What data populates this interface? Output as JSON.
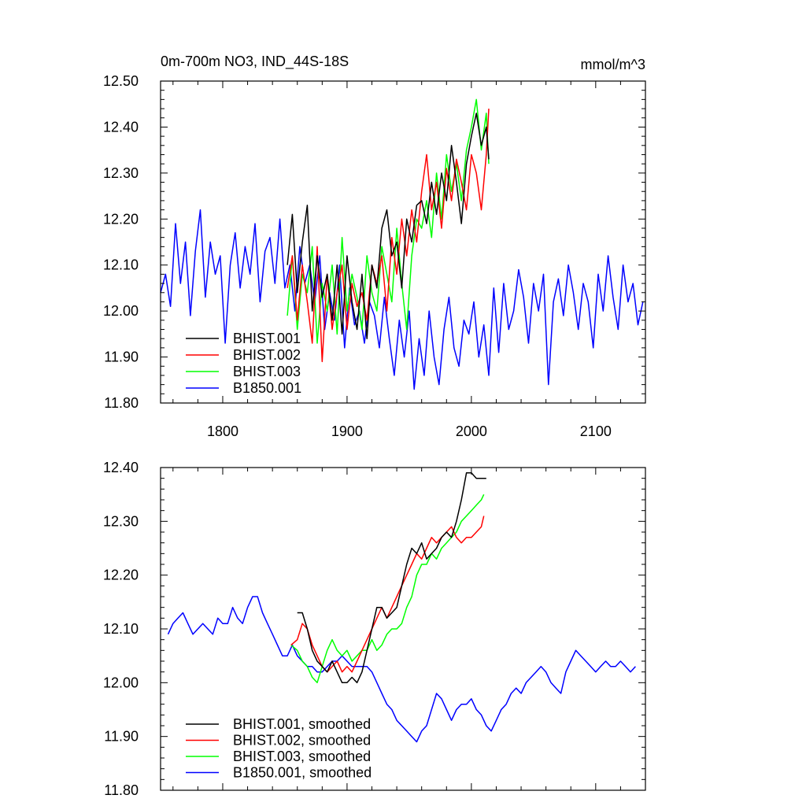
{
  "figure": {
    "title": "0m-700m NO3, IND_44S-18S",
    "units": "mmol/m^3"
  },
  "colors": {
    "black": "#000000",
    "red": "#ff0000",
    "green": "#00ff00",
    "blue": "#0000ff"
  },
  "chart_data": [
    {
      "type": "line",
      "title": "0m-700m NO3, IND_44S-18S",
      "units_label": "mmol/m^3",
      "xlim": [
        1750,
        2140
      ],
      "ylim": [
        11.8,
        12.5
      ],
      "xticks": [
        1800,
        1900,
        2000,
        2100
      ],
      "yticks": [
        11.8,
        11.9,
        12.0,
        12.1,
        12.2,
        12.3,
        12.4,
        12.5
      ],
      "ytick_labels": [
        "11.80",
        "11.90",
        "12.00",
        "12.10",
        "12.20",
        "12.30",
        "12.40",
        "12.50"
      ],
      "xtick_labels": [
        "1800",
        "1900",
        "2000",
        "2100"
      ],
      "legend_position": "bottom-left",
      "grid": false,
      "series": [
        {
          "name": "BHIST.001",
          "color": "#000000",
          "x": [
            1852,
            1856,
            1860,
            1864,
            1868,
            1872,
            1876,
            1880,
            1884,
            1888,
            1892,
            1896,
            1900,
            1904,
            1908,
            1912,
            1916,
            1920,
            1924,
            1928,
            1932,
            1936,
            1940,
            1944,
            1948,
            1952,
            1956,
            1960,
            1964,
            1968,
            1972,
            1976,
            1980,
            1984,
            1988,
            1992,
            1996,
            2000,
            2004,
            2008,
            2012,
            2014
          ],
          "values": [
            12.1,
            12.21,
            12.04,
            12.15,
            12.23,
            12.0,
            12.12,
            12.03,
            12.08,
            11.98,
            12.1,
            11.95,
            12.12,
            12.02,
            11.96,
            12.08,
            11.94,
            12.1,
            12.05,
            12.18,
            12.22,
            12.12,
            12.15,
            12.05,
            12.2,
            12.15,
            12.23,
            12.24,
            12.19,
            12.28,
            12.21,
            12.3,
            12.24,
            12.36,
            12.28,
            12.19,
            12.32,
            12.38,
            12.43,
            12.36,
            12.4,
            12.33
          ]
        },
        {
          "name": "BHIST.002",
          "color": "#ff0000",
          "x": [
            1852,
            1856,
            1860,
            1864,
            1868,
            1872,
            1876,
            1880,
            1884,
            1888,
            1892,
            1896,
            1900,
            1904,
            1908,
            1912,
            1916,
            1920,
            1924,
            1928,
            1932,
            1936,
            1940,
            1944,
            1948,
            1952,
            1956,
            1960,
            1964,
            1968,
            1972,
            1976,
            1980,
            1984,
            1988,
            1992,
            1996,
            2000,
            2004,
            2008,
            2012,
            2014
          ],
          "values": [
            12.05,
            12.12,
            11.98,
            12.1,
            12.02,
            11.93,
            12.14,
            11.89,
            12.08,
            11.96,
            12.04,
            12.1,
            11.96,
            12.06,
            12.01,
            12.04,
            11.98,
            12.1,
            12.06,
            12.12,
            12.0,
            12.16,
            12.08,
            12.2,
            12.12,
            12.22,
            12.15,
            12.26,
            12.34,
            12.22,
            12.28,
            12.18,
            12.31,
            12.24,
            12.33,
            12.28,
            12.22,
            12.34,
            12.3,
            12.22,
            12.34,
            12.44
          ]
        },
        {
          "name": "BHIST.003",
          "color": "#00ff00",
          "x": [
            1852,
            1856,
            1860,
            1864,
            1868,
            1872,
            1876,
            1880,
            1884,
            1888,
            1892,
            1896,
            1900,
            1904,
            1908,
            1912,
            1916,
            1920,
            1924,
            1928,
            1932,
            1936,
            1940,
            1944,
            1948,
            1952,
            1956,
            1960,
            1964,
            1968,
            1972,
            1976,
            1980,
            1984,
            1988,
            1992,
            1996,
            2000,
            2004,
            2008,
            2012,
            2014
          ],
          "values": [
            11.99,
            12.12,
            11.96,
            12.08,
            12.04,
            12.14,
            11.93,
            12.06,
            12.0,
            12.1,
            11.95,
            12.16,
            12.0,
            12.08,
            12.03,
            11.96,
            12.12,
            12.04,
            12.0,
            12.14,
            12.08,
            12.02,
            12.18,
            12.06,
            11.96,
            12.12,
            12.2,
            12.18,
            12.24,
            12.16,
            12.3,
            12.2,
            12.34,
            12.26,
            12.32,
            12.24,
            12.35,
            12.4,
            12.46,
            12.35,
            12.43,
            12.32
          ]
        },
        {
          "name": "B1850.001",
          "color": "#0000ff",
          "x": [
            1750,
            1754,
            1758,
            1762,
            1766,
            1770,
            1774,
            1778,
            1782,
            1786,
            1790,
            1794,
            1798,
            1802,
            1806,
            1810,
            1814,
            1818,
            1822,
            1826,
            1830,
            1834,
            1838,
            1842,
            1846,
            1850,
            1854,
            1858,
            1862,
            1866,
            1870,
            1874,
            1878,
            1882,
            1886,
            1890,
            1894,
            1898,
            1902,
            1906,
            1910,
            1914,
            1918,
            1922,
            1926,
            1930,
            1934,
            1938,
            1942,
            1946,
            1950,
            1954,
            1958,
            1962,
            1966,
            1970,
            1974,
            1978,
            1982,
            1986,
            1990,
            1994,
            1998,
            2002,
            2006,
            2010,
            2014,
            2018,
            2022,
            2026,
            2030,
            2034,
            2038,
            2042,
            2046,
            2050,
            2054,
            2058,
            2062,
            2066,
            2070,
            2074,
            2078,
            2082,
            2086,
            2090,
            2094,
            2098,
            2102,
            2106,
            2110,
            2114,
            2118,
            2122,
            2126,
            2130,
            2134,
            2138
          ],
          "values": [
            12.04,
            12.08,
            12.01,
            12.19,
            12.06,
            12.15,
            11.99,
            12.13,
            12.22,
            12.03,
            12.15,
            12.08,
            12.12,
            11.93,
            12.1,
            12.17,
            12.05,
            12.14,
            12.08,
            12.19,
            12.02,
            12.13,
            12.16,
            12.06,
            12.2,
            12.05,
            12.1,
            12.0,
            12.14,
            12.06,
            12.1,
            12.02,
            12.12,
            11.96,
            12.04,
            11.98,
            12.1,
            11.92,
            12.05,
            11.97,
            12.0,
            11.93,
            12.02,
            11.99,
            11.92,
            12.03,
            11.94,
            11.86,
            11.98,
            11.9,
            12.0,
            11.83,
            11.94,
            11.86,
            12.0,
            11.9,
            11.84,
            11.96,
            12.03,
            11.92,
            11.88,
            11.98,
            11.95,
            12.02,
            11.9,
            11.97,
            11.86,
            12.05,
            11.91,
            12.06,
            11.96,
            12.0,
            12.09,
            12.03,
            11.93,
            12.06,
            12.0,
            12.08,
            11.84,
            12.02,
            12.07,
            11.99,
            12.1,
            12.04,
            11.96,
            12.06,
            12.02,
            11.92,
            12.08,
            12.0,
            12.12,
            12.03,
            11.96,
            12.1,
            12.02,
            12.06,
            11.97,
            12.02
          ]
        }
      ]
    },
    {
      "type": "line",
      "xlim": [
        1750,
        2140
      ],
      "ylim": [
        11.8,
        12.4
      ],
      "xticks": [
        1800,
        1900,
        2000,
        2100
      ],
      "yticks": [
        11.8,
        11.9,
        12.0,
        12.1,
        12.2,
        12.3,
        12.4
      ],
      "ytick_labels": [
        "11.80",
        "11.90",
        "12.00",
        "12.10",
        "12.20",
        "12.30",
        "12.40"
      ],
      "legend_position": "bottom-left",
      "grid": false,
      "series": [
        {
          "name": "BHIST.001, smoothed",
          "color": "#000000",
          "x": [
            1860,
            1864,
            1868,
            1872,
            1876,
            1880,
            1884,
            1888,
            1892,
            1896,
            1900,
            1904,
            1908,
            1912,
            1916,
            1920,
            1924,
            1928,
            1932,
            1936,
            1940,
            1944,
            1948,
            1952,
            1956,
            1960,
            1964,
            1968,
            1972,
            1976,
            1980,
            1984,
            1988,
            1992,
            1996,
            2000,
            2004,
            2008,
            2012
          ],
          "values": [
            12.13,
            12.13,
            12.1,
            12.06,
            12.04,
            12.03,
            12.02,
            12.04,
            12.02,
            12.0,
            12.0,
            12.01,
            12.0,
            12.02,
            12.06,
            12.1,
            12.14,
            12.14,
            12.12,
            12.13,
            12.14,
            12.18,
            12.22,
            12.25,
            12.24,
            12.26,
            12.23,
            12.24,
            12.25,
            12.27,
            12.28,
            12.27,
            12.3,
            12.34,
            12.39,
            12.39,
            12.38,
            12.38,
            12.38
          ]
        },
        {
          "name": "BHIST.002, smoothed",
          "color": "#ff0000",
          "x": [
            1855,
            1860,
            1864,
            1868,
            1872,
            1876,
            1880,
            1884,
            1888,
            1892,
            1896,
            1900,
            1904,
            1908,
            1912,
            1916,
            1920,
            1924,
            1928,
            1932,
            1936,
            1940,
            1944,
            1948,
            1952,
            1956,
            1960,
            1964,
            1968,
            1972,
            1976,
            1980,
            1984,
            1988,
            1992,
            1996,
            2000,
            2004,
            2008,
            2010
          ],
          "values": [
            12.07,
            12.08,
            12.11,
            12.1,
            12.07,
            12.05,
            12.03,
            12.02,
            12.03,
            12.04,
            12.02,
            12.03,
            12.02,
            12.04,
            12.06,
            12.08,
            12.1,
            12.12,
            12.14,
            12.12,
            12.14,
            12.16,
            12.18,
            12.2,
            12.22,
            12.24,
            12.23,
            12.25,
            12.27,
            12.26,
            12.27,
            12.28,
            12.29,
            12.27,
            12.26,
            12.27,
            12.27,
            12.28,
            12.29,
            12.31
          ]
        },
        {
          "name": "BHIST.003, smoothed",
          "color": "#00ff00",
          "x": [
            1855,
            1860,
            1864,
            1868,
            1872,
            1876,
            1880,
            1884,
            1888,
            1892,
            1896,
            1900,
            1904,
            1908,
            1912,
            1916,
            1920,
            1924,
            1928,
            1932,
            1936,
            1940,
            1944,
            1948,
            1952,
            1956,
            1960,
            1964,
            1968,
            1972,
            1976,
            1980,
            1984,
            1988,
            1992,
            1996,
            2000,
            2004,
            2008,
            2010
          ],
          "values": [
            12.07,
            12.06,
            12.04,
            12.03,
            12.01,
            12.0,
            12.03,
            12.06,
            12.08,
            12.06,
            12.05,
            12.06,
            12.04,
            12.05,
            12.06,
            12.06,
            12.08,
            12.06,
            12.07,
            12.09,
            12.1,
            12.1,
            12.11,
            12.14,
            12.16,
            12.2,
            12.22,
            12.22,
            12.24,
            12.23,
            12.25,
            12.26,
            12.27,
            12.28,
            12.3,
            12.31,
            12.32,
            12.33,
            12.34,
            12.35
          ]
        },
        {
          "name": "B1850.001, smoothed",
          "color": "#0000ff",
          "x": [
            1756,
            1760,
            1764,
            1768,
            1772,
            1776,
            1780,
            1784,
            1788,
            1792,
            1796,
            1800,
            1804,
            1808,
            1812,
            1816,
            1820,
            1824,
            1828,
            1832,
            1836,
            1840,
            1844,
            1848,
            1852,
            1856,
            1860,
            1864,
            1868,
            1872,
            1876,
            1880,
            1884,
            1888,
            1892,
            1896,
            1900,
            1904,
            1908,
            1912,
            1916,
            1920,
            1924,
            1928,
            1932,
            1936,
            1940,
            1944,
            1948,
            1952,
            1956,
            1960,
            1964,
            1968,
            1972,
            1976,
            1980,
            1984,
            1988,
            1992,
            1996,
            2000,
            2004,
            2008,
            2012,
            2016,
            2020,
            2024,
            2028,
            2032,
            2036,
            2040,
            2044,
            2048,
            2052,
            2056,
            2060,
            2064,
            2068,
            2072,
            2076,
            2080,
            2084,
            2088,
            2092,
            2096,
            2100,
            2104,
            2108,
            2112,
            2116,
            2120,
            2124,
            2128,
            2132
          ],
          "values": [
            12.09,
            12.11,
            12.12,
            12.13,
            12.11,
            12.09,
            12.1,
            12.11,
            12.1,
            12.09,
            12.12,
            12.11,
            12.11,
            12.14,
            12.12,
            12.11,
            12.14,
            12.16,
            12.16,
            12.13,
            12.11,
            12.09,
            12.07,
            12.05,
            12.05,
            12.07,
            12.05,
            12.04,
            12.03,
            12.03,
            12.02,
            12.02,
            12.03,
            12.04,
            12.04,
            12.05,
            12.04,
            12.03,
            12.03,
            12.03,
            12.03,
            12.02,
            12.0,
            11.98,
            11.96,
            11.95,
            11.93,
            11.92,
            11.91,
            11.9,
            11.89,
            11.91,
            11.92,
            11.95,
            11.98,
            11.97,
            11.95,
            11.93,
            11.95,
            11.96,
            11.96,
            11.97,
            11.95,
            11.94,
            11.92,
            11.91,
            11.93,
            11.95,
            11.96,
            11.98,
            11.99,
            11.98,
            12.0,
            12.01,
            12.02,
            12.03,
            12.02,
            12.0,
            11.99,
            11.98,
            12.02,
            12.04,
            12.06,
            12.05,
            12.04,
            12.03,
            12.02,
            12.03,
            12.04,
            12.03,
            12.03,
            12.04,
            12.03,
            12.02,
            12.03
          ]
        }
      ]
    }
  ]
}
